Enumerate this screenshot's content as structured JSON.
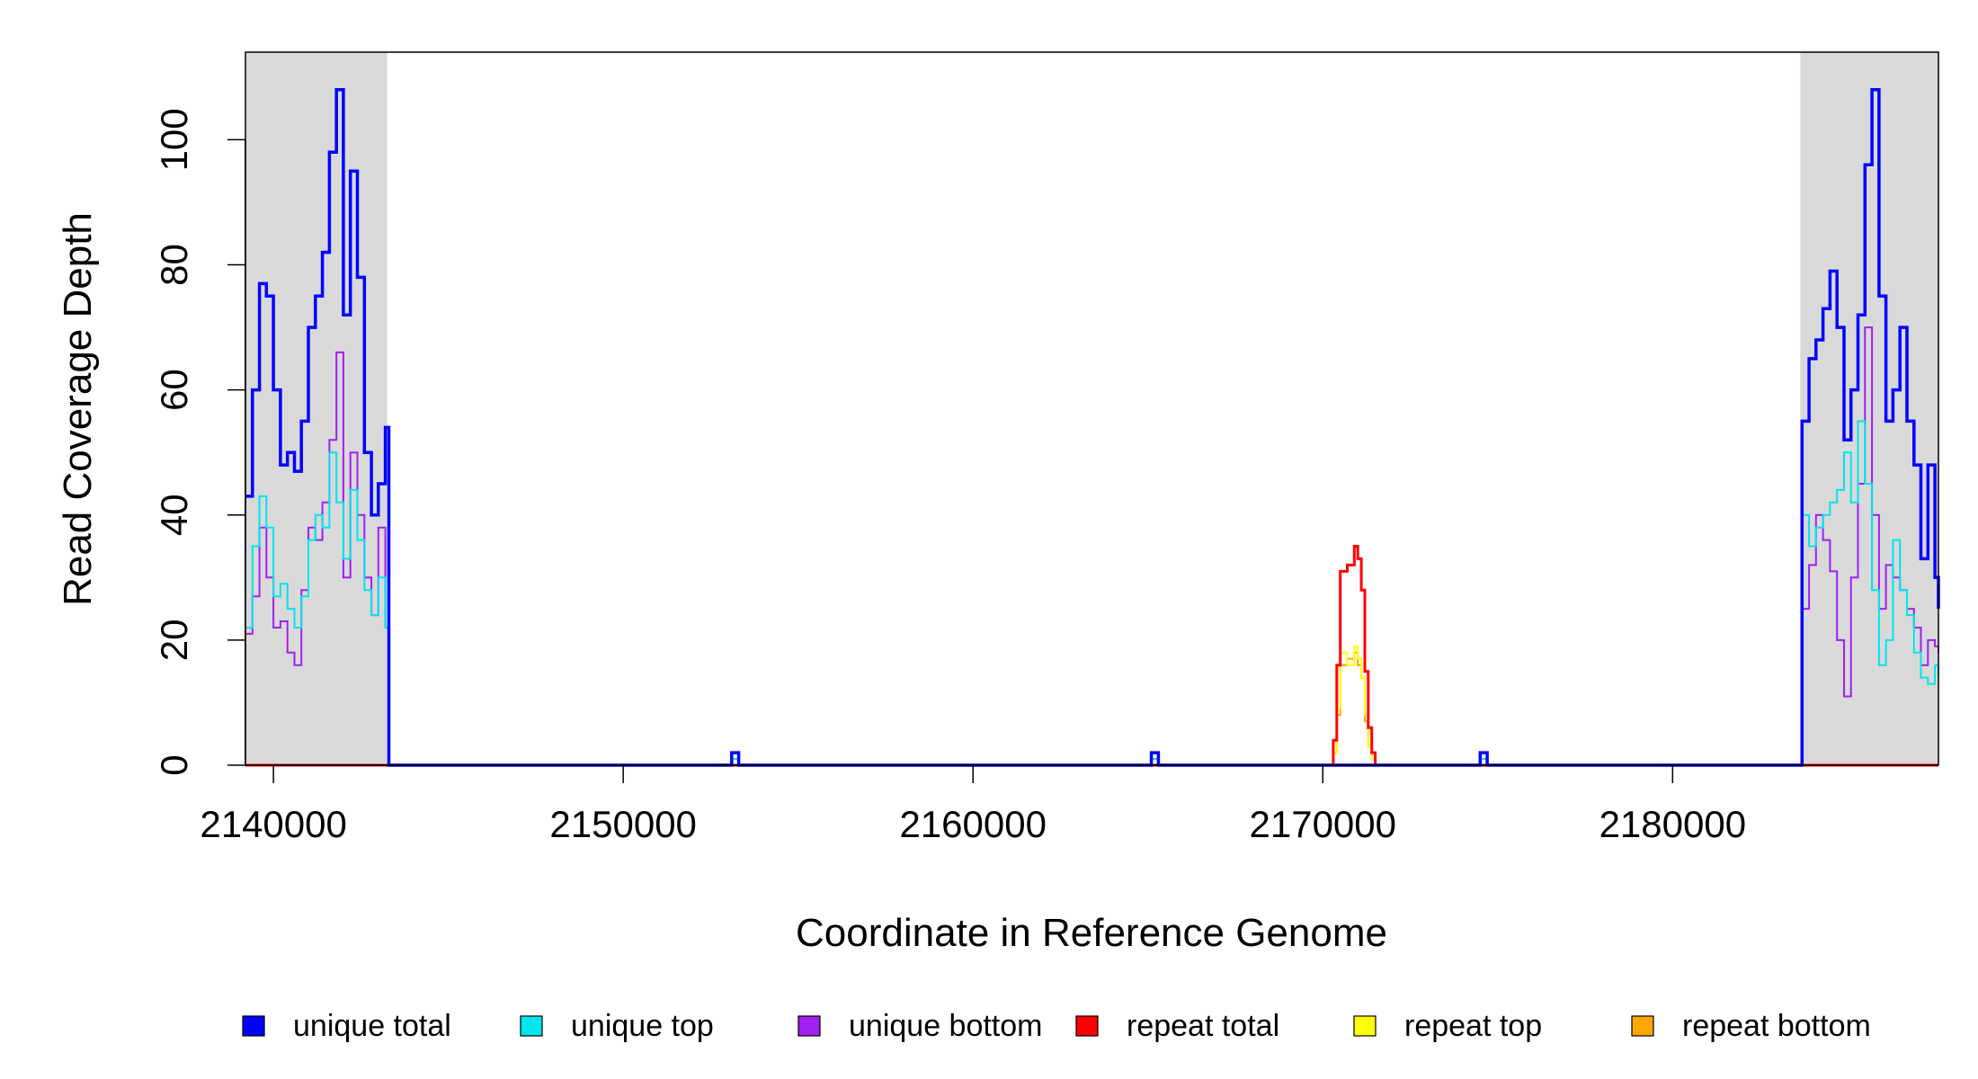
{
  "chart_data": {
    "type": "line",
    "title": "",
    "xlabel": "Coordinate in Reference Genome",
    "ylabel": "Read Coverage Depth",
    "xlim": [
      2139200,
      2187600
    ],
    "ylim": [
      0,
      114
    ],
    "x_ticks": [
      {
        "value": 2140000,
        "label": "2140000"
      },
      {
        "value": 2150000,
        "label": "2150000"
      },
      {
        "value": 2160000,
        "label": "2160000"
      },
      {
        "value": 2170000,
        "label": "2170000"
      },
      {
        "value": 2180000,
        "label": "2180000"
      }
    ],
    "y_ticks": [
      {
        "value": 0,
        "label": "0"
      },
      {
        "value": 20,
        "label": "20"
      },
      {
        "value": 40,
        "label": "40"
      },
      {
        "value": 60,
        "label": "60"
      },
      {
        "value": 80,
        "label": "80"
      },
      {
        "value": 100,
        "label": "100"
      }
    ],
    "shaded_regions": [
      {
        "x0": 2139200,
        "x1": 2143250,
        "color": "#d9d9d9"
      },
      {
        "x0": 2183650,
        "x1": 2187600,
        "color": "#d9d9d9"
      }
    ],
    "grid": false,
    "legend_position": "bottom",
    "series": [
      {
        "name": "unique total",
        "color": "#0000ff",
        "x": [
          2139200,
          2139400,
          2139600,
          2139800,
          2140000,
          2140200,
          2140400,
          2140600,
          2140800,
          2141000,
          2141200,
          2141400,
          2141600,
          2141800,
          2142000,
          2142200,
          2142400,
          2142600,
          2142800,
          2143000,
          2143200,
          2143300,
          2143400,
          2153000,
          2153100,
          2153200,
          2153300,
          2165000,
          2165100,
          2165200,
          2165300,
          2174400,
          2174500,
          2174600,
          2174700,
          2183600,
          2183700,
          2183900,
          2184100,
          2184300,
          2184500,
          2184700,
          2184900,
          2185100,
          2185300,
          2185500,
          2185700,
          2185900,
          2186100,
          2186300,
          2186500,
          2186700,
          2186900,
          2187100,
          2187300,
          2187500,
          2187600
        ],
        "y": [
          43,
          60,
          77,
          75,
          60,
          48,
          50,
          47,
          55,
          70,
          75,
          82,
          98,
          108,
          72,
          95,
          78,
          50,
          40,
          45,
          54,
          0,
          0,
          0,
          2,
          2,
          0,
          0,
          2,
          2,
          0,
          0,
          2,
          2,
          0,
          0,
          55,
          65,
          68,
          73,
          79,
          70,
          52,
          60,
          72,
          96,
          108,
          75,
          55,
          60,
          70,
          55,
          48,
          33,
          48,
          30,
          25
        ]
      },
      {
        "name": "unique top",
        "color": "#00e5ee",
        "x": [
          2139200,
          2139400,
          2139600,
          2139800,
          2140000,
          2140200,
          2140400,
          2140600,
          2140800,
          2141000,
          2141200,
          2141400,
          2141600,
          2141800,
          2142000,
          2142200,
          2142400,
          2142600,
          2142800,
          2143000,
          2143200,
          2143300,
          2143400,
          2153000,
          2153100,
          2153200,
          2153300,
          2165000,
          2165100,
          2165200,
          2165300,
          2174400,
          2174500,
          2174600,
          2174700,
          2183600,
          2183700,
          2183900,
          2184100,
          2184300,
          2184500,
          2184700,
          2184900,
          2185100,
          2185300,
          2185500,
          2185700,
          2185900,
          2186100,
          2186300,
          2186500,
          2186700,
          2186900,
          2187100,
          2187300,
          2187500,
          2187600
        ],
        "y": [
          22,
          35,
          43,
          38,
          27,
          29,
          25,
          22,
          27,
          36,
          40,
          38,
          50,
          42,
          33,
          44,
          36,
          28,
          24,
          30,
          22,
          0,
          0,
          0,
          1,
          1,
          0,
          0,
          1,
          1,
          0,
          0,
          1,
          1,
          0,
          0,
          40,
          35,
          38,
          40,
          42,
          44,
          50,
          42,
          55,
          45,
          28,
          16,
          20,
          36,
          28,
          24,
          18,
          14,
          13,
          16,
          14
        ]
      },
      {
        "name": "unique bottom",
        "color": "#a020f0",
        "x": [
          2139200,
          2139400,
          2139600,
          2139800,
          2140000,
          2140200,
          2140400,
          2140600,
          2140800,
          2141000,
          2141200,
          2141400,
          2141600,
          2141800,
          2142000,
          2142200,
          2142400,
          2142600,
          2142800,
          2143000,
          2143200,
          2143300,
          2143400,
          2153000,
          2153100,
          2153200,
          2153300,
          2165000,
          2165100,
          2165200,
          2165300,
          2174400,
          2174500,
          2174600,
          2174700,
          2183600,
          2183700,
          2183900,
          2184100,
          2184300,
          2184500,
          2184700,
          2184900,
          2185100,
          2185300,
          2185500,
          2185700,
          2185900,
          2186100,
          2186300,
          2186500,
          2186700,
          2186900,
          2187100,
          2187300,
          2187500,
          2187600
        ],
        "y": [
          21,
          27,
          38,
          30,
          22,
          23,
          18,
          16,
          28,
          38,
          36,
          42,
          52,
          66,
          30,
          50,
          40,
          30,
          24,
          38,
          22,
          0,
          0,
          0,
          1,
          1,
          0,
          0,
          1,
          1,
          0,
          0,
          1,
          1,
          0,
          0,
          25,
          32,
          40,
          36,
          31,
          20,
          11,
          30,
          45,
          70,
          40,
          25,
          32,
          30,
          28,
          25,
          22,
          16,
          20,
          19,
          18
        ]
      },
      {
        "name": "repeat total",
        "color": "#ff0000",
        "x": [
          2139200,
          2170200,
          2170300,
          2170400,
          2170500,
          2170700,
          2170900,
          2171000,
          2171100,
          2171200,
          2171300,
          2171400,
          2171500,
          2187600
        ],
        "y": [
          0,
          0,
          4,
          16,
          31,
          32,
          35,
          33,
          28,
          15,
          6,
          2,
          0,
          0
        ]
      },
      {
        "name": "repeat top",
        "color": "#ffff00",
        "x": [
          2139200,
          2170200,
          2170300,
          2170400,
          2170500,
          2170700,
          2170900,
          2171000,
          2171100,
          2171200,
          2171300,
          2171400,
          2171500,
          2187600
        ],
        "y": [
          0,
          0,
          2,
          9,
          18,
          16,
          19,
          17,
          14,
          8,
          3,
          1,
          0,
          0
        ]
      },
      {
        "name": "repeat bottom",
        "color": "#ffa500",
        "x": [
          2139200,
          2170200,
          2170300,
          2170400,
          2170500,
          2170700,
          2170900,
          2171000,
          2171100,
          2171200,
          2171300,
          2171400,
          2171500,
          2187600
        ],
        "y": [
          0,
          0,
          2,
          8,
          16,
          17,
          18,
          16,
          14,
          7,
          3,
          1,
          0,
          0
        ]
      }
    ]
  }
}
